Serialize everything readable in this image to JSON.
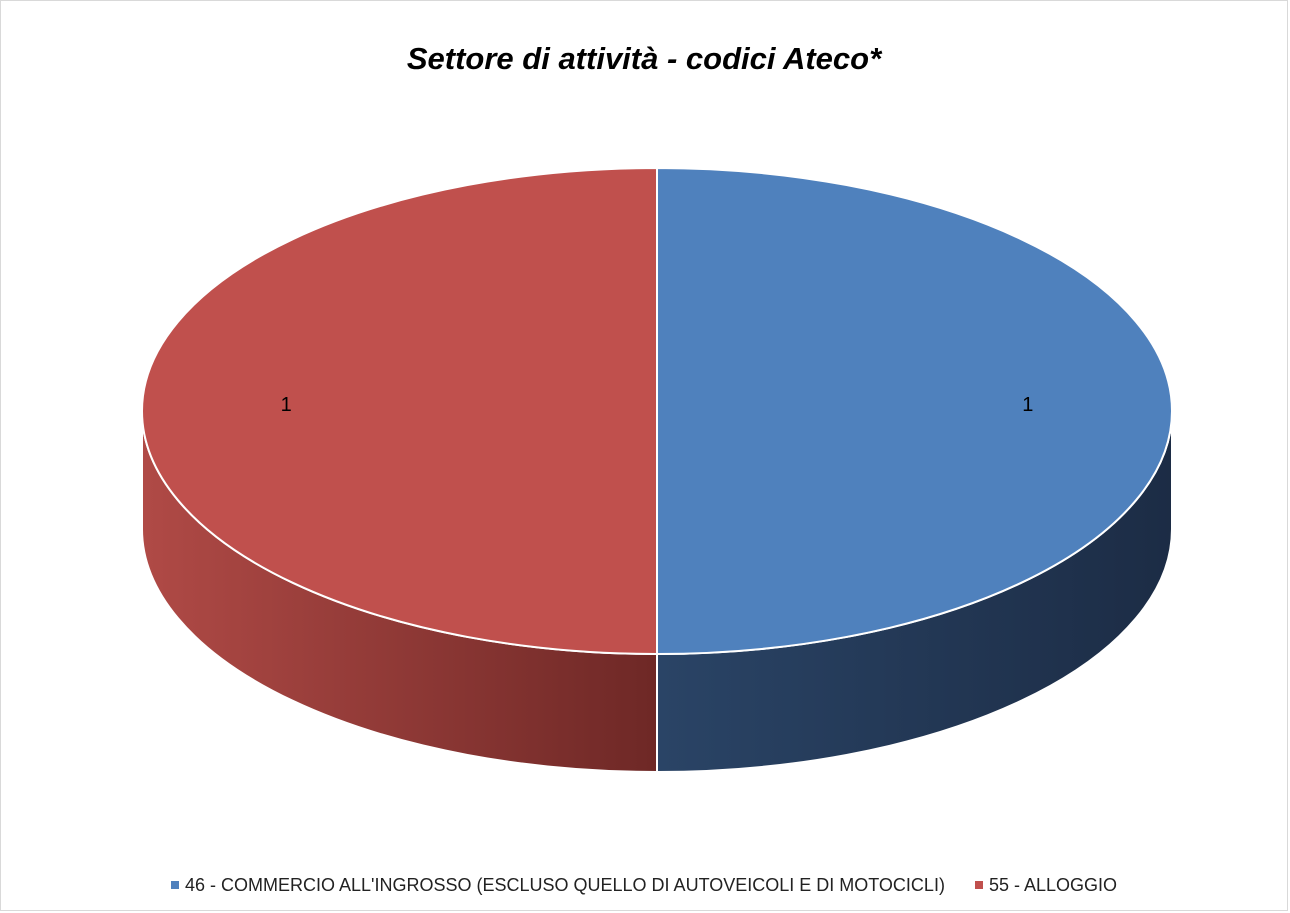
{
  "chart_data": {
    "type": "pie",
    "title": "Settore di attività - codici Ateco*",
    "style": "3d",
    "slices": [
      {
        "label": "46 - COMMERCIO ALL'INGROSSO (ESCLUSO QUELLO DI AUTOVEICOLI E DI MOTOCICLI)",
        "value": 1,
        "color": "#4F81BD",
        "side_color": "#1F3350"
      },
      {
        "label": "55 - ALLOGGIO",
        "value": 1,
        "color": "#C0504D",
        "side_color": "#7A2D2B"
      }
    ],
    "data_labels": [
      "1",
      "1"
    ],
    "legend_position": "bottom"
  }
}
